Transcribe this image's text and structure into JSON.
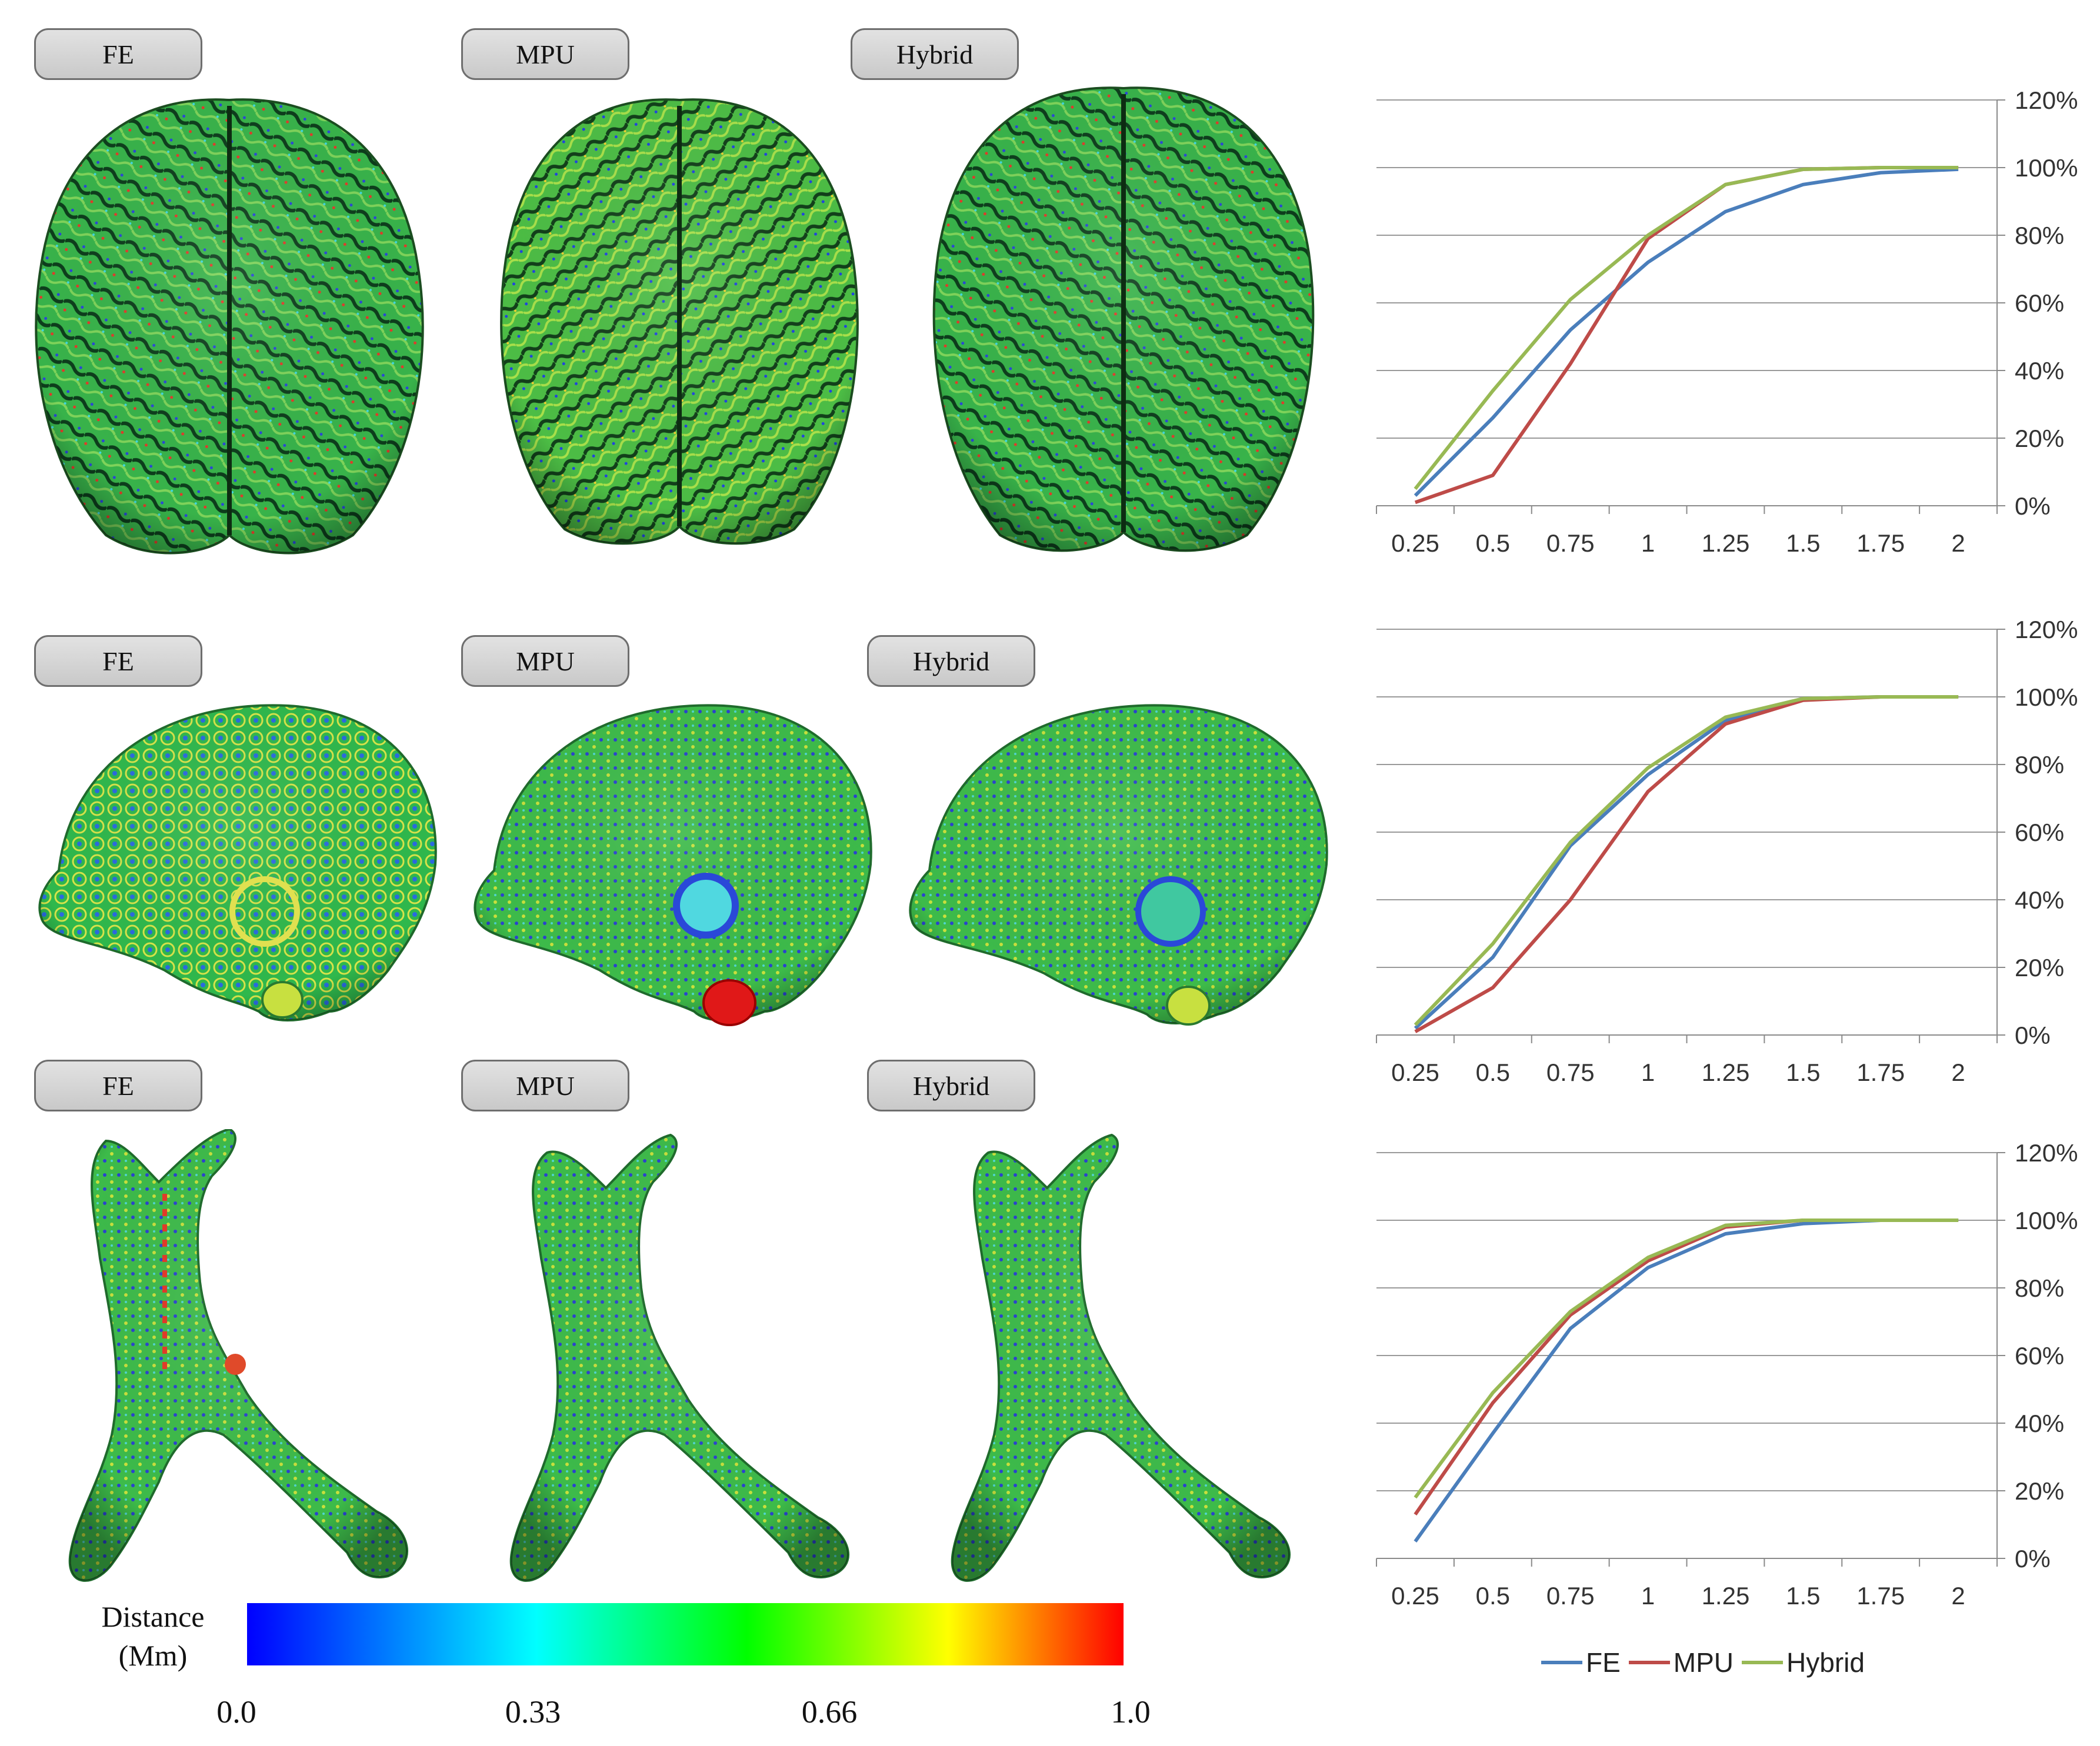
{
  "panels": {
    "labels": [
      "FE",
      "MPU",
      "Hybrid"
    ]
  },
  "colorbar": {
    "title_line1": "Distance",
    "title_line2": "(Mm)",
    "ticks": [
      "0.0",
      "0.33",
      "0.66",
      "1.0"
    ]
  },
  "colors": {
    "FE": "#4a7ebb",
    "MPU": "#be4b48",
    "Hybrid": "#98b954"
  },
  "chart_data": [
    {
      "type": "line",
      "x": [
        0.25,
        0.5,
        0.75,
        1,
        1.25,
        1.5,
        1.75,
        2
      ],
      "x_labels": [
        "0.25",
        "0.5",
        "0.75",
        "1",
        "1.25",
        "1.5",
        "1.75",
        "2"
      ],
      "ylim": [
        0,
        1.2
      ],
      "y_ticks": [
        "0%",
        "20%",
        "40%",
        "60%",
        "80%",
        "100%",
        "120%"
      ],
      "y_axis_side": "right",
      "grid": true,
      "series": [
        {
          "name": "FE",
          "values": [
            0.03,
            0.26,
            0.52,
            0.72,
            0.87,
            0.95,
            0.985,
            0.995
          ]
        },
        {
          "name": "MPU",
          "values": [
            0.01,
            0.09,
            0.42,
            0.79,
            0.95,
            0.995,
            1.0,
            1.0
          ]
        },
        {
          "name": "Hybrid",
          "values": [
            0.05,
            0.34,
            0.61,
            0.8,
            0.95,
            0.995,
            1.0,
            1.0
          ]
        }
      ]
    },
    {
      "type": "line",
      "x": [
        0.25,
        0.5,
        0.75,
        1,
        1.25,
        1.5,
        1.75,
        2
      ],
      "x_labels": [
        "0.25",
        "0.5",
        "0.75",
        "1",
        "1.25",
        "1.5",
        "1.75",
        "2"
      ],
      "ylim": [
        0,
        1.2
      ],
      "y_ticks": [
        "0%",
        "20%",
        "40%",
        "60%",
        "80%",
        "100%",
        "120%"
      ],
      "y_axis_side": "right",
      "grid": true,
      "series": [
        {
          "name": "FE",
          "values": [
            0.02,
            0.23,
            0.56,
            0.77,
            0.93,
            0.995,
            1.0,
            1.0
          ]
        },
        {
          "name": "MPU",
          "values": [
            0.01,
            0.14,
            0.4,
            0.72,
            0.92,
            0.99,
            1.0,
            1.0
          ]
        },
        {
          "name": "Hybrid",
          "values": [
            0.03,
            0.27,
            0.57,
            0.79,
            0.94,
            0.995,
            1.0,
            1.0
          ]
        }
      ]
    },
    {
      "type": "line",
      "x": [
        0.25,
        0.5,
        0.75,
        1,
        1.25,
        1.5,
        1.75,
        2
      ],
      "x_labels": [
        "0.25",
        "0.5",
        "0.75",
        "1",
        "1.25",
        "1.5",
        "1.75",
        "2"
      ],
      "ylim": [
        0,
        1.2
      ],
      "y_ticks": [
        "0%",
        "20%",
        "40%",
        "60%",
        "80%",
        "100%",
        "120%"
      ],
      "y_axis_side": "right",
      "grid": true,
      "legend": "bottom",
      "series": [
        {
          "name": "FE",
          "values": [
            0.05,
            0.37,
            0.68,
            0.86,
            0.96,
            0.99,
            1.0,
            1.0
          ]
        },
        {
          "name": "MPU",
          "values": [
            0.13,
            0.46,
            0.72,
            0.88,
            0.98,
            1.0,
            1.0,
            1.0
          ]
        },
        {
          "name": "Hybrid",
          "values": [
            0.18,
            0.49,
            0.73,
            0.89,
            0.985,
            1.0,
            1.0,
            1.0
          ]
        }
      ]
    }
  ]
}
